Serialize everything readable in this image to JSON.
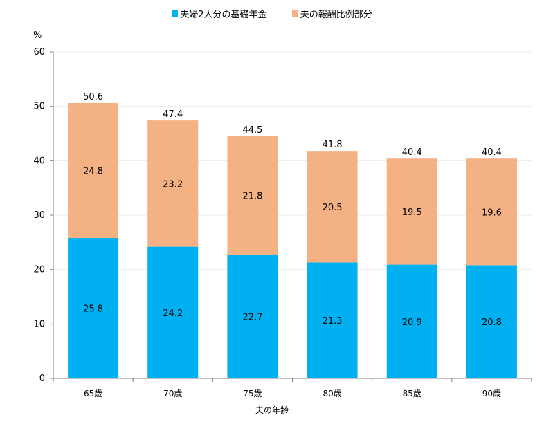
{
  "legend": {
    "items": [
      {
        "label": "夫婦2人分の基礎年金",
        "color": "#00b0f0"
      },
      {
        "label": "夫の報酬比例部分",
        "color": "#f4b183"
      }
    ]
  },
  "chart_data": {
    "type": "bar",
    "stacked": true,
    "categories": [
      "65歳",
      "70歳",
      "75歳",
      "80歳",
      "85歳",
      "90歳"
    ],
    "series": [
      {
        "name": "夫婦2人分の基礎年金",
        "color": "#00b0f0",
        "values": [
          25.8,
          24.2,
          22.7,
          21.3,
          20.9,
          20.8
        ]
      },
      {
        "name": "夫の報酬比例部分",
        "color": "#f4b183",
        "values": [
          24.8,
          23.2,
          21.8,
          20.5,
          19.5,
          19.6
        ]
      }
    ],
    "totals": [
      50.6,
      47.4,
      44.5,
      41.8,
      40.4,
      40.4
    ],
    "totals_labels": [
      "50.6",
      "47.4",
      "44.5",
      "41.8",
      "40.4",
      "40.4"
    ],
    "series_labels": [
      [
        "25.8",
        "24.2",
        "22.7",
        "21.3",
        "20.9",
        "20.8"
      ],
      [
        "24.8",
        "23.2",
        "21.8",
        "20.5",
        "19.5",
        "19.6"
      ]
    ],
    "ylim": [
      0,
      60
    ],
    "yticks": [
      0,
      10,
      20,
      30,
      40,
      50,
      60
    ],
    "ylabel": "%",
    "xlabel": "夫の年齢",
    "grid": true,
    "legend_position": "top-center"
  }
}
